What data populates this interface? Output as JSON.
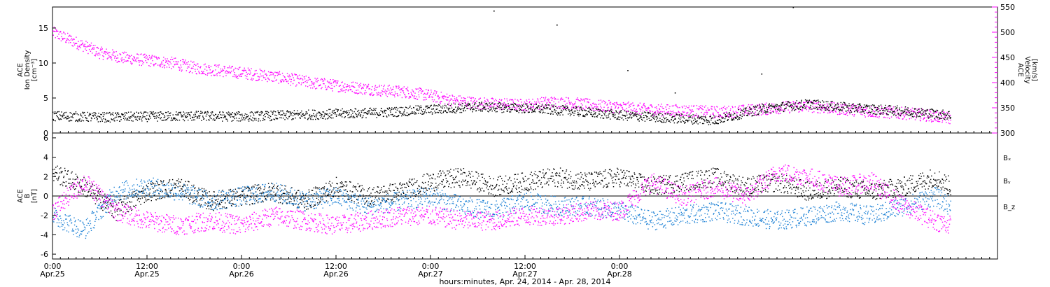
{
  "chart_data": [
    {
      "type": "scatter",
      "panel": "top",
      "ylabel_left": [
        "ACE",
        "Ion Density",
        "[cm⁻³]"
      ],
      "ylabel_right": [
        "ACE",
        "Velocity",
        "[km/s]"
      ],
      "ylim_left": [
        0,
        18
      ],
      "ylim_right": [
        300,
        550
      ],
      "yticks_left": [
        "0",
        "5",
        "10",
        "15"
      ],
      "yticks_right": [
        "300",
        "350",
        "400",
        "450",
        "500",
        "550"
      ],
      "series": [
        {
          "axis": "left",
          "color": "#000000",
          "hours": [
            0,
            6,
            12,
            18,
            24,
            30,
            36,
            42,
            48,
            54,
            60,
            66,
            72,
            78,
            84,
            90,
            96,
            102,
            108,
            114
          ],
          "values": [
            2.5,
            2.3,
            2.4,
            2.5,
            2.4,
            2.6,
            2.8,
            3.0,
            3.4,
            3.8,
            3.6,
            3.2,
            2.6,
            2.2,
            1.9,
            3.5,
            4.2,
            3.6,
            3.2,
            2.6
          ],
          "spikes": [
            [
              56,
              17.5
            ],
            [
              64,
              15.5
            ],
            [
              73,
              9.0
            ],
            [
              79,
              5.8
            ],
            [
              90,
              8.5
            ],
            [
              94,
              18.0
            ]
          ]
        },
        {
          "axis": "right",
          "color": "#ff00ff",
          "hours": [
            0,
            3,
            6,
            9,
            12,
            15,
            18,
            21,
            24,
            27,
            30,
            33,
            36,
            39,
            42,
            45,
            48,
            51,
            54,
            57,
            60,
            63,
            66,
            69,
            72,
            75,
            78,
            81,
            84,
            87,
            90,
            93,
            96,
            99,
            102,
            105,
            108,
            111,
            114
          ],
          "values": [
            500,
            480,
            460,
            450,
            445,
            440,
            430,
            425,
            420,
            415,
            408,
            400,
            395,
            390,
            385,
            382,
            375,
            365,
            360,
            358,
            356,
            362,
            360,
            355,
            352,
            348,
            346,
            345,
            342,
            344,
            348,
            352,
            354,
            350,
            346,
            342,
            340,
            336,
            330
          ]
        }
      ]
    },
    {
      "type": "scatter",
      "panel": "bottom",
      "ylabel": [
        "ACE",
        "B",
        "[nT]"
      ],
      "ylim": [
        -6.5,
        6.5
      ],
      "yticks": [
        "-6",
        "-4",
        "-2",
        "0",
        "2",
        "4",
        "6"
      ],
      "legend": [
        {
          "label": "Bₓ",
          "color": "#000000"
        },
        {
          "label": "Bᵧ",
          "color": "#1a7fd4"
        },
        {
          "label": "B_z",
          "color": "#ff00ff"
        }
      ],
      "series": [
        {
          "label": "Bx",
          "color": "#000000",
          "hours": [
            0,
            4,
            8,
            12,
            16,
            20,
            24,
            28,
            32,
            36,
            40,
            44,
            48,
            52,
            56,
            60,
            64,
            68,
            72,
            76,
            80,
            84,
            88,
            92,
            96,
            100,
            104,
            108,
            112,
            114
          ],
          "values": [
            2.5,
            1.0,
            -1.5,
            0.5,
            1.0,
            -0.5,
            0.0,
            0.5,
            -0.5,
            1.0,
            0.0,
            0.5,
            1.5,
            2.0,
            1.0,
            1.5,
            2.0,
            1.5,
            2.0,
            1.0,
            1.5,
            2.0,
            1.0,
            1.5,
            0.5,
            1.0,
            0.5,
            1.0,
            2.0,
            1.0
          ]
        },
        {
          "label": "By",
          "color": "#1a7fd4",
          "hours": [
            0,
            4,
            8,
            12,
            16,
            20,
            24,
            28,
            32,
            36,
            40,
            44,
            48,
            52,
            56,
            60,
            64,
            68,
            72,
            76,
            80,
            84,
            88,
            92,
            96,
            100,
            104,
            108,
            112,
            114
          ],
          "values": [
            -2.0,
            -3.5,
            0.5,
            1.0,
            0.5,
            -0.5,
            0.0,
            0.5,
            -0.5,
            0.0,
            -1.0,
            -0.5,
            0.0,
            -1.0,
            -1.5,
            -0.5,
            -1.0,
            -1.0,
            -1.5,
            -2.5,
            -2.0,
            -1.5,
            -2.0,
            -2.5,
            -2.0,
            -1.5,
            -2.0,
            -1.0,
            0.0,
            -1.0
          ]
        },
        {
          "label": "Bz",
          "color": "#ff00ff",
          "hours": [
            0,
            4,
            8,
            12,
            16,
            20,
            24,
            28,
            32,
            36,
            40,
            44,
            48,
            52,
            56,
            60,
            64,
            68,
            72,
            76,
            80,
            84,
            88,
            92,
            96,
            100,
            104,
            108,
            112,
            114
          ],
          "values": [
            -1.5,
            1.5,
            -1.5,
            -2.5,
            -3.0,
            -2.5,
            -3.0,
            -2.0,
            -2.5,
            -3.0,
            -2.5,
            -2.0,
            -2.0,
            -2.5,
            -2.5,
            -2.0,
            -2.0,
            -1.5,
            -1.5,
            1.5,
            0.0,
            1.0,
            0.0,
            2.5,
            2.0,
            1.0,
            1.5,
            -1.0,
            -2.5,
            -3.0
          ]
        }
      ]
    }
  ],
  "x_axis": {
    "range_hours": [
      0,
      120
    ],
    "ticks": [
      {
        "hours": 0,
        "time": "0:00",
        "date": "Apr.25"
      },
      {
        "hours": 12,
        "time": "12:00",
        "date": "Apr.25"
      },
      {
        "hours": 24,
        "time": "0:00",
        "date": "Apr.26"
      },
      {
        "hours": 36,
        "time": "12:00",
        "date": "Apr.26"
      },
      {
        "hours": 48,
        "time": "0:00",
        "date": "Apr.27"
      },
      {
        "hours": 60,
        "time": "12:00",
        "date": "Apr.27"
      },
      {
        "hours": 72,
        "time": "0:00",
        "date": "Apr.28"
      }
    ],
    "label": "hours:minutes, Apr. 24, 2014 - Apr. 28, 2014"
  },
  "top_left_label": [
    "ACE",
    "Ion Density",
    "[cm⁻³]"
  ],
  "top_right_label": [
    "ACE",
    "Velocity",
    "[km/s]"
  ],
  "bottom_left_label": [
    "ACE",
    "B",
    "[nT]"
  ],
  "legend_labels": {
    "bx": "Bₓ",
    "by": "Bᵧ",
    "bz": "B_z"
  },
  "colors": {
    "density": "#000000",
    "velocity": "#ff00ff",
    "bx": "#000000",
    "by": "#1a7fd4",
    "bz": "#ff00ff"
  }
}
